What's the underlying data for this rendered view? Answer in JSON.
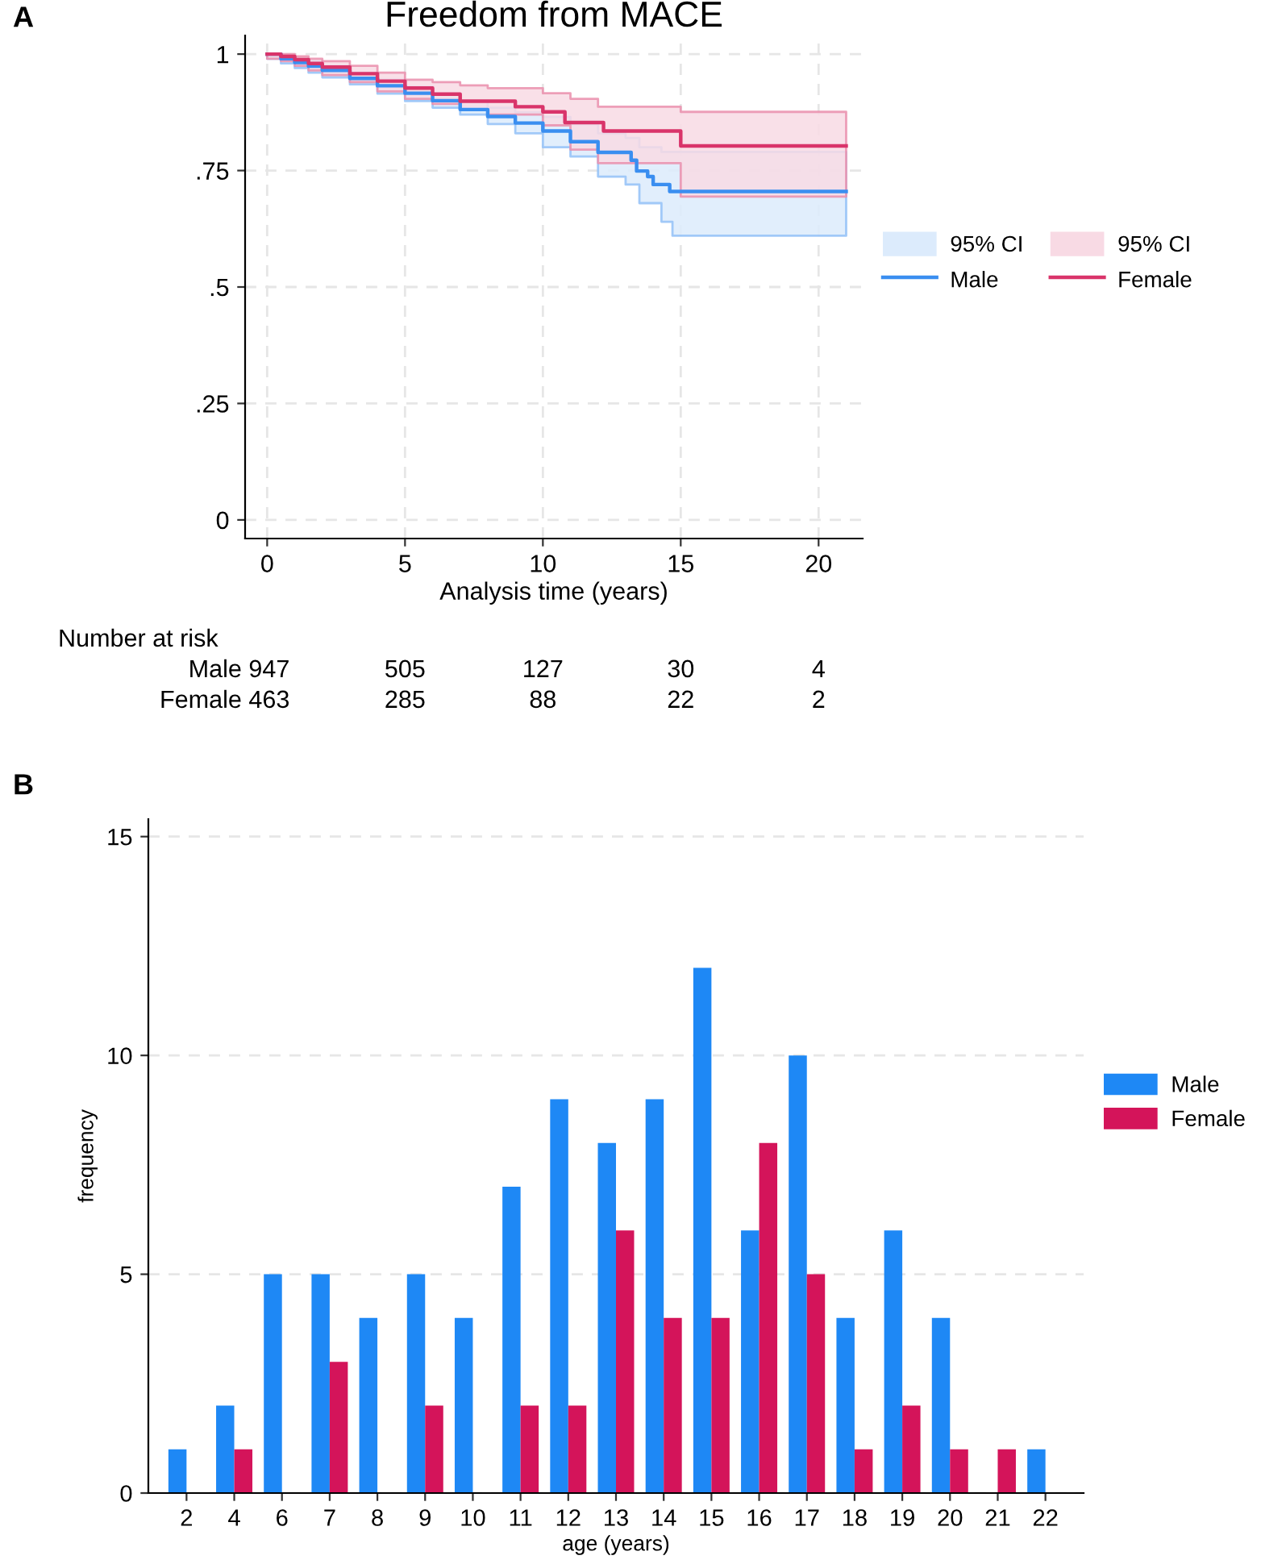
{
  "chart_data": [
    {
      "type": "step",
      "title": "Freedom from MACE",
      "xlabel": "Analysis time (years)",
      "xlim": [
        -0.8,
        21.6
      ],
      "ylim": [
        -0.04,
        1.04
      ],
      "xticks": [
        0,
        5,
        10,
        15,
        20
      ],
      "yticks": [
        {
          "value": 0,
          "label": "0"
        },
        {
          "value": 0.25,
          "label": ".25"
        },
        {
          "value": 0.5,
          "label": ".5"
        },
        {
          "value": 0.75,
          "label": ".75"
        },
        {
          "value": 1,
          "label": "1"
        }
      ],
      "grid": true,
      "legend": "right",
      "line_style": "solid",
      "marker": "none",
      "series": [
        {
          "type": "step",
          "name": "Male",
          "color": "#3a8ef0",
          "x": [
            0,
            0.5,
            1,
            1.5,
            2,
            3,
            4,
            5,
            6,
            7,
            8,
            9,
            10,
            11,
            12,
            13,
            13.2,
            13.4,
            13.5,
            13.8,
            14,
            14.3,
            14.6,
            14.7,
            21
          ],
          "values": [
            1,
            0.99,
            0.982,
            0.974,
            0.965,
            0.948,
            0.932,
            0.916,
            0.9,
            0.881,
            0.866,
            0.852,
            0.835,
            0.812,
            0.789,
            0.789,
            0.772,
            0.749,
            0.749,
            0.737,
            0.72,
            0.72,
            0.705,
            0.705,
            0.705
          ],
          "lower": [
            0.99,
            0.98,
            0.97,
            0.96,
            0.95,
            0.935,
            0.915,
            0.899,
            0.885,
            0.87,
            0.85,
            0.83,
            0.8,
            0.78,
            0.737,
            0.72,
            0.72,
            0.72,
            0.68,
            0.68,
            0.68,
            0.64,
            0.64,
            0.61,
            0.61
          ],
          "upper": [
            1,
            0.995,
            0.99,
            0.985,
            0.975,
            0.96,
            0.945,
            0.93,
            0.915,
            0.9,
            0.885,
            0.875,
            0.865,
            0.85,
            0.83,
            0.82,
            0.82,
            0.82,
            0.8,
            0.8,
            0.8,
            0.79,
            0.79,
            0.79,
            0.79
          ]
        },
        {
          "type": "step",
          "name": "Female",
          "color": "#d9346a",
          "x": [
            0,
            0.5,
            1,
            1.5,
            2,
            3,
            4,
            5,
            6,
            7,
            8,
            9,
            10,
            10.8,
            11,
            12,
            12.2,
            15,
            21
          ],
          "values": [
            1,
            0.995,
            0.988,
            0.98,
            0.972,
            0.958,
            0.942,
            0.927,
            0.914,
            0.899,
            0.899,
            0.887,
            0.876,
            0.853,
            0.853,
            0.853,
            0.835,
            0.803,
            0.803
          ],
          "lower": [
            0.99,
            0.985,
            0.975,
            0.965,
            0.955,
            0.94,
            0.92,
            0.904,
            0.893,
            0.882,
            0.87,
            0.87,
            0.847,
            0.847,
            0.795,
            0.766,
            0.766,
            0.694,
            0.694
          ],
          "upper": [
            1,
            1,
            0.995,
            0.99,
            0.985,
            0.975,
            0.96,
            0.945,
            0.94,
            0.933,
            0.927,
            0.927,
            0.916,
            0.916,
            0.904,
            0.887,
            0.887,
            0.876,
            0.876
          ]
        }
      ],
      "annotations": [
        "A",
        "Number at risk",
        "Male 947",
        "505",
        "127",
        "30",
        "4",
        "Female 463",
        "285",
        "88",
        "22",
        "2",
        "95% CI",
        "95% CI"
      ]
    },
    {
      "type": "bar",
      "xlabel": "age (years)",
      "ylabel": "frequency",
      "categories": [
        "2",
        "4",
        "6",
        "7",
        "8",
        "9",
        "10",
        "11",
        "12",
        "13",
        "14",
        "15",
        "16",
        "17",
        "18",
        "19",
        "20",
        "21",
        "22"
      ],
      "ylim": [
        0,
        15.4
      ],
      "yticks": [
        0,
        5,
        10,
        15
      ],
      "grid": "y",
      "legend": "right",
      "series": [
        {
          "name": "Male",
          "color": "#1e88f5",
          "values": [
            1,
            2,
            5,
            5,
            4,
            5,
            4,
            7,
            9,
            8,
            9,
            12,
            6,
            10,
            4,
            6,
            4,
            0,
            1
          ]
        },
        {
          "name": "Female",
          "color": "#d4145a",
          "values": [
            0,
            1,
            0,
            3,
            0,
            2,
            0,
            2,
            2,
            6,
            4,
            4,
            8,
            5,
            1,
            2,
            1,
            1,
            0
          ]
        }
      ],
      "annotations": [
        "B"
      ]
    }
  ]
}
